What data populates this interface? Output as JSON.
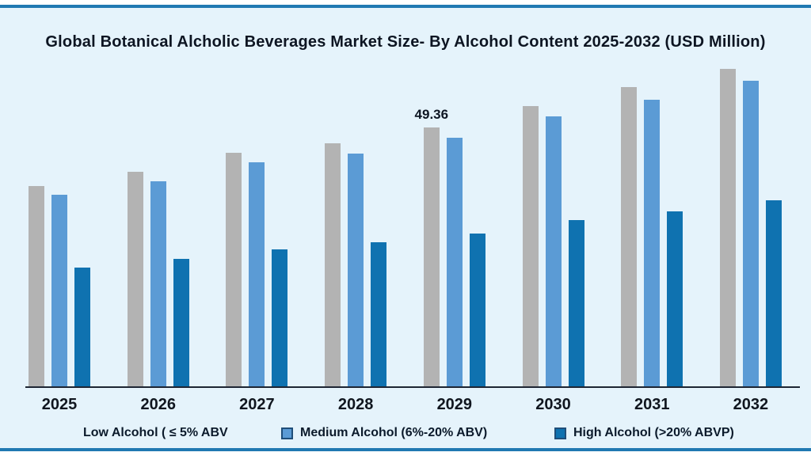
{
  "title": "Global Botanical Alcholic Beverages Market Size- By Alcohol Content 2025-2032 (USD Million)",
  "colors": {
    "background": "#e5f3fb",
    "frame_rule": "#2079b2",
    "axis": "#1d2533",
    "low_series": "#b3b3b3",
    "medium_series": "#5b9bd5",
    "high_series": "#0f72b0",
    "text": "#0d1522"
  },
  "chart_data": {
    "type": "bar",
    "title": "Global Botanical Alcholic Beverages Market Size- By Alcohol Content 2025-2032 (USD Million)",
    "unit": "USD Million",
    "categories": [
      "2025",
      "2026",
      "2027",
      "2028",
      "2029",
      "2030",
      "2031",
      "2032"
    ],
    "series": [
      {
        "name": "Low Alcohol ( ≤ 5% ABV",
        "color": "#b3b3b3",
        "values": [
          38.2,
          40.9,
          44.5,
          46.3,
          49.36,
          53.4,
          57.1,
          60.5
        ]
      },
      {
        "name": "Medium Alcohol (6%-20% ABV)",
        "color": "#5b9bd5",
        "values": [
          36.5,
          39.1,
          42.7,
          44.4,
          47.4,
          51.5,
          54.6,
          58.3
        ]
      },
      {
        "name": "High Alcohol (>20% ABVP)",
        "color": "#0f72b0",
        "values": [
          22.6,
          24.3,
          26.1,
          27.5,
          29.1,
          31.7,
          33.4,
          35.5
        ]
      }
    ],
    "annotation": {
      "category": "2029",
      "series_index": 0,
      "text": "49.36"
    },
    "xlabel": "",
    "ylabel": "",
    "ylim": [
      0,
      65
    ],
    "grid": false,
    "y_axis_visible": false,
    "legend_position": "bottom"
  },
  "legend": {
    "low_label": "Low Alcohol ( ≤ 5%   ABV",
    "medium_label": "Medium Alcohol (6%-20% ABV)",
    "high_label": "High Alcohol (>20% ABVP)"
  }
}
